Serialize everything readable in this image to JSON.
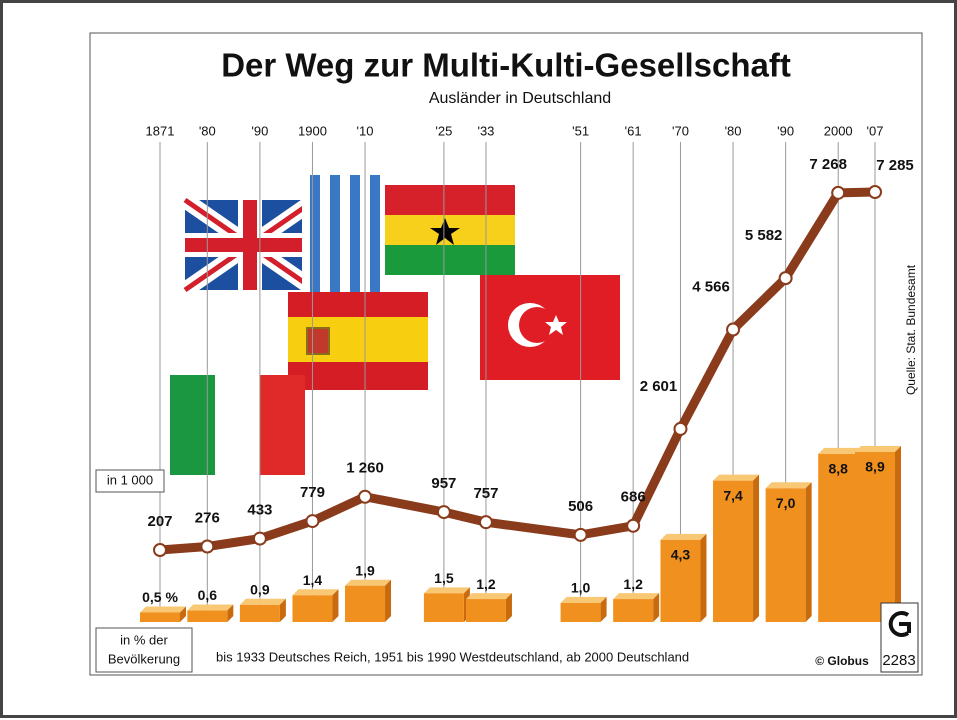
{
  "chart_data": [
    {
      "type": "line",
      "title": "Der Weg zur Multi-Kulti-Gesellschaft",
      "subtitle": "Ausländer in Deutschland",
      "unit_label": "in 1 000",
      "x": [
        1871,
        {
          "value": 1880,
          "label": "'80"
        },
        {
          "value": 1890,
          "label": "'90"
        },
        1900,
        {
          "value": 1910,
          "label": "'10"
        },
        {
          "value": 1925,
          "label": "'25"
        },
        {
          "value": 1933,
          "label": "'33"
        },
        {
          "value": 1951,
          "label": "'51"
        },
        {
          "value": 1961,
          "label": "'61"
        },
        {
          "value": 1970,
          "label": "'70"
        },
        {
          "value": 1980,
          "label": "'80"
        },
        {
          "value": 1990,
          "label": "'90"
        },
        2000,
        {
          "value": 2007,
          "label": "'07"
        }
      ],
      "values": [
        207,
        276,
        433,
        779,
        1260,
        957,
        757,
        506,
        686,
        2601,
        4566,
        5582,
        7268,
        7285
      ],
      "value_labels": [
        "207",
        "276",
        "433",
        "779",
        "1 260",
        "957",
        "757",
        "506",
        "686",
        "2 601",
        "4 566",
        "5 582",
        "7 268",
        "7 285"
      ],
      "color": "#8a3b1c",
      "note": "bis 1933 Deutsches Reich, 1951 bis 1990 Westdeutschland, ab 2000 Deutschland",
      "source": "Quelle: Stat. Bundesamt",
      "credit": "© Globus",
      "code": "2283"
    },
    {
      "type": "bar",
      "unit_label": [
        "in % der",
        "Bevölkerung"
      ],
      "x": [
        1871,
        1880,
        1890,
        1900,
        1910,
        1925,
        1933,
        1951,
        1961,
        1970,
        1980,
        1990,
        2000,
        2007
      ],
      "values": [
        0.5,
        0.6,
        0.9,
        1.4,
        1.9,
        1.5,
        1.2,
        1.0,
        1.2,
        4.3,
        7.4,
        7.0,
        8.8,
        8.9
      ],
      "value_labels": [
        "0,5 %",
        "0,6",
        "0,9",
        "1,4",
        "1,9",
        "1,5",
        "1,2",
        "1,0",
        "1,2",
        "4,3",
        "7,4",
        "7,0",
        "8,8",
        "8,9"
      ],
      "color": "#f0901e"
    }
  ]
}
